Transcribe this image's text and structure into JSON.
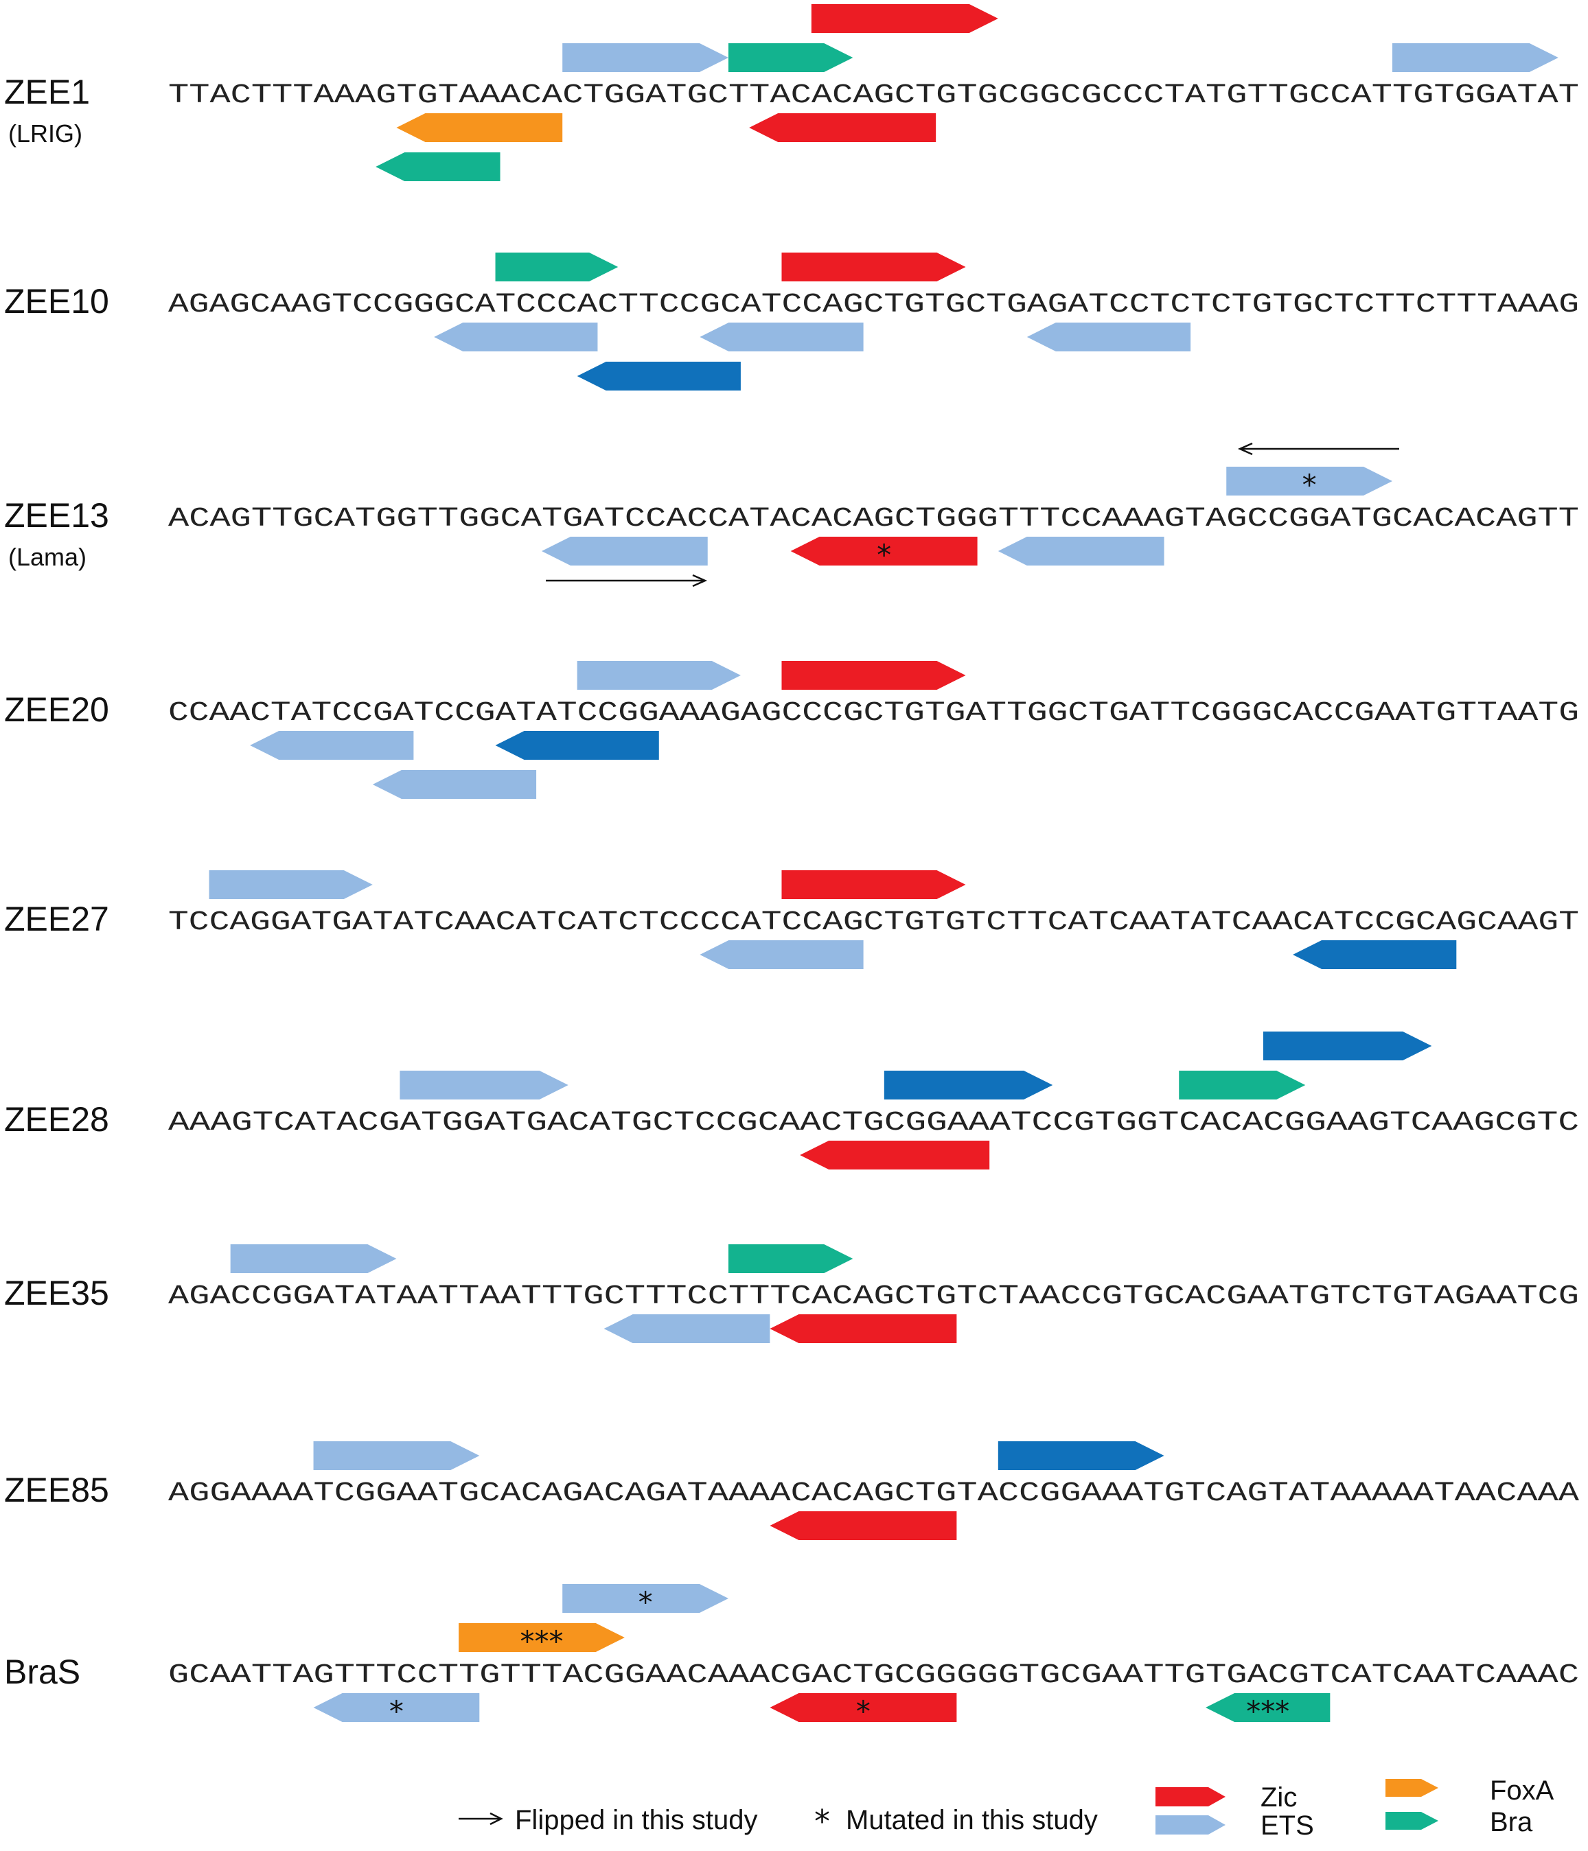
{
  "colors": {
    "Zic": "#ec1c24",
    "ETS": "#94b9e3",
    "ETS_dark": "#1071bb",
    "FoxA": "#f7941d",
    "Bra": "#13b38f"
  },
  "rows": [
    {
      "name": "ZEE1",
      "sub": "(LRIG)",
      "seq": "TTACTTTAAAGTGTAAACACTGGATGCTTACACAGCTGTGCGGCGCCCTATGTTGCCATTGTGGATAT",
      "features": [
        {
          "type": "Bra",
          "dir": "+",
          "start": 27,
          "end": 33
        },
        {
          "type": "ETS",
          "dir": "+",
          "start": 19,
          "end": 27
        },
        {
          "type": "Zic",
          "dir": "+",
          "start": 31,
          "end": 40
        },
        {
          "type": "ETS",
          "dir": "+",
          "start": 59,
          "end": 67
        },
        {
          "type": "FoxA",
          "dir": "-",
          "start": 11,
          "end": 19
        },
        {
          "type": "Zic",
          "dir": "-",
          "start": 28,
          "end": 37
        },
        {
          "type": "Bra",
          "dir": "-",
          "start": 10,
          "end": 16
        }
      ]
    },
    {
      "name": "ZEE10",
      "sub": "",
      "seq": "AGAGCAAGTCCGGGCATCCCACTTCCGCATCCAGCTGTGCTGAGATCCTCTCTGTGCTCTTCTTTAAAG",
      "features": [
        {
          "type": "Bra",
          "dir": "+",
          "start": 16,
          "end": 22
        },
        {
          "type": "Zic",
          "dir": "+",
          "start": 30,
          "end": 39
        },
        {
          "type": "ETS",
          "dir": "-",
          "start": 13,
          "end": 21
        },
        {
          "type": "ETS",
          "dir": "-",
          "start": 26,
          "end": 34
        },
        {
          "type": "ETS",
          "dir": "-",
          "start": 42,
          "end": 50
        },
        {
          "type": "ETS_dark",
          "dir": "-",
          "start": 20,
          "end": 28
        }
      ]
    },
    {
      "name": "ZEE13",
      "sub": "(Lama)",
      "seq": "ACAGTTGCATGGTTGGCATGATCCACCATACACAGCTGGGTTTCCAAAGTAGCCGGATGCACACAGTT",
      "features": [
        {
          "type": "ETS",
          "dir": "+",
          "start": 51,
          "end": 59,
          "mark": "*"
        },
        {
          "type": "ETS",
          "dir": "-",
          "start": 18,
          "end": 26
        },
        {
          "type": "Zic",
          "dir": "-",
          "start": 30,
          "end": 39,
          "mark": "*"
        },
        {
          "type": "ETS",
          "dir": "-",
          "start": 40,
          "end": 48
        }
      ]
    },
    {
      "name": "ZEE20",
      "sub": "",
      "seq": "CCAACTATCCGATCCGATATCCGGAAAGAGCCCGCTGTGATTGGCTGATTCGGGCACCGAATGTTAATG",
      "features": [
        {
          "type": "ETS",
          "dir": "+",
          "start": 20,
          "end": 28
        },
        {
          "type": "Zic",
          "dir": "+",
          "start": 30,
          "end": 39
        },
        {
          "type": "ETS",
          "dir": "-",
          "start": 4,
          "end": 12
        },
        {
          "type": "ETS_dark",
          "dir": "-",
          "start": 16,
          "end": 24
        },
        {
          "type": "ETS",
          "dir": "-",
          "start": 10,
          "end": 18
        }
      ]
    },
    {
      "name": "ZEE27",
      "sub": "",
      "seq": "TCCAGGATGATATCAACATCATCTCCCCATCCAGCTGTGTCTTCATCAATATCAACATCCGCAGCAAGT",
      "features": [
        {
          "type": "ETS",
          "dir": "+",
          "start": 2,
          "end": 10
        },
        {
          "type": "Zic",
          "dir": "+",
          "start": 30,
          "end": 39
        },
        {
          "type": "ETS",
          "dir": "-",
          "start": 26,
          "end": 34
        },
        {
          "type": "ETS_dark",
          "dir": "-",
          "start": 55,
          "end": 63
        }
      ]
    },
    {
      "name": "ZEE28",
      "sub": "",
      "seq": "AAAGTCATACGATGGATGACATGCTCCGCAACTGCGGAAATCCGTGGTCACACGGAAGTCAAGCGTC",
      "features": [
        {
          "type": "Bra",
          "dir": "+",
          "start": 48,
          "end": 54
        },
        {
          "type": "ETS",
          "dir": "+",
          "start": 11,
          "end": 19
        },
        {
          "type": "ETS_dark",
          "dir": "+",
          "start": 34,
          "end": 42
        },
        {
          "type": "ETS_dark",
          "dir": "+",
          "start": 52,
          "end": 60
        },
        {
          "type": "Zic",
          "dir": "-",
          "start": 30,
          "end": 39
        }
      ]
    },
    {
      "name": "ZEE35",
      "sub": "",
      "seq": "AGACCGGATATAATTAATTTGCTTTCCTTTCACAGCTGTCTAACCGTGCACGAATGTCTGTAGAATCG",
      "features": [
        {
          "type": "ETS",
          "dir": "+",
          "start": 3,
          "end": 11
        },
        {
          "type": "Bra",
          "dir": "+",
          "start": 27,
          "end": 33
        },
        {
          "type": "ETS",
          "dir": "-",
          "start": 21,
          "end": 29
        },
        {
          "type": "Zic",
          "dir": "-",
          "start": 29,
          "end": 38
        }
      ]
    },
    {
      "name": "ZEE85",
      "sub": "",
      "seq": "AGGAAAATCGGAATGCACAGACAGATAAAACACAGCTGTACCGGAAATGTCAGTATAAAAATAACAAA",
      "features": [
        {
          "type": "ETS",
          "dir": "+",
          "start": 7,
          "end": 15
        },
        {
          "type": "ETS_dark",
          "dir": "+",
          "start": 40,
          "end": 48
        },
        {
          "type": "Zic",
          "dir": "-",
          "start": 29,
          "end": 38
        }
      ]
    },
    {
      "name": "BraS",
      "sub": "",
      "seq": "GCAATTAGTTTCCTTGTTTACGGAACAAACGACTGCGGGGGTGCGAATTGTGACGTCATCAATCAAAC",
      "features": [
        {
          "type": "FoxA",
          "dir": "+",
          "start": 14,
          "end": 22,
          "mark": "***"
        },
        {
          "type": "ETS",
          "dir": "+",
          "start": 19,
          "end": 27,
          "mark": "*"
        },
        {
          "type": "ETS",
          "dir": "-",
          "start": 7,
          "end": 15,
          "mark": "*"
        },
        {
          "type": "Zic",
          "dir": "-",
          "start": 29,
          "end": 38,
          "mark": "*"
        },
        {
          "type": "Bra",
          "dir": "-",
          "start": 50,
          "end": 56,
          "mark": "***"
        }
      ]
    }
  ],
  "legend": {
    "flipped": "Flipped in this study",
    "mutated": "Mutated in this study",
    "mutated_symbol": "*",
    "Zic": "Zic",
    "ETS": "ETS",
    "FoxA": "FoxA",
    "Bra": "Bra"
  }
}
